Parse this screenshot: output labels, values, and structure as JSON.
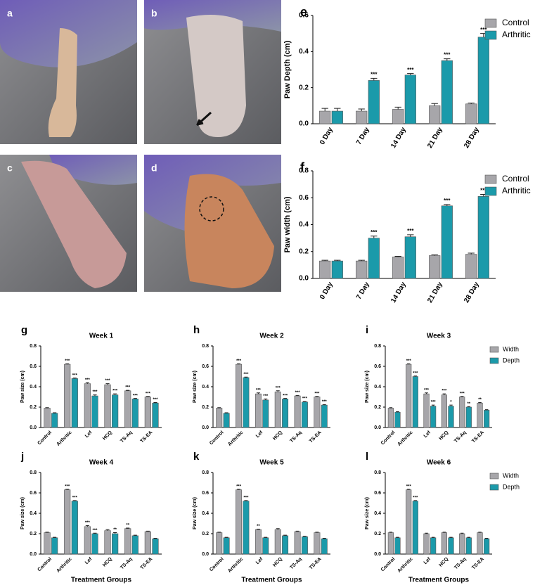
{
  "photos": [
    {
      "label": "a"
    },
    {
      "label": "b"
    },
    {
      "label": "c"
    },
    {
      "label": "d"
    }
  ],
  "chart_data": [
    {
      "type": "bar",
      "label": "e",
      "ylabel": "Paw Depth (cm)",
      "legend": true,
      "categories": [
        "0 Day",
        "7 Day",
        "14 Day",
        "21 Day",
        "28 Day"
      ],
      "ylim": [
        0,
        0.6
      ],
      "yticks": [
        {
          "value": 0,
          "label": "0.0"
        },
        0.2,
        0.4,
        0.6
      ],
      "series": [
        {
          "name": "Control",
          "color": "#a7a6aa",
          "values": [
            0.07,
            0.07,
            0.08,
            0.1,
            0.11
          ],
          "errors": [
            0.015,
            0.012,
            0.012,
            0.012,
            0.005
          ],
          "annotations": [
            null,
            null,
            null,
            null,
            null
          ]
        },
        {
          "name": "Arthritic",
          "color": "#1b9aaa",
          "values": [
            0.07,
            0.24,
            0.27,
            0.35,
            0.48
          ],
          "errors": [
            0.015,
            0.012,
            0.008,
            0.01,
            0.02
          ],
          "annotations": [
            null,
            "***",
            "***",
            "***",
            "***"
          ]
        }
      ]
    },
    {
      "type": "bar",
      "label": "f",
      "ylabel": "Paw width (cm)",
      "legend": true,
      "categories": [
        "0 Day",
        "7 Day",
        "14 Day",
        "21 Day",
        "28 Day"
      ],
      "ylim": [
        0,
        0.8
      ],
      "yticks": [
        {
          "value": 0,
          "label": "0.0"
        },
        0.2,
        0.4,
        0.6,
        0.8
      ],
      "series": [
        {
          "name": "Control",
          "color": "#a7a6aa",
          "values": [
            0.13,
            0.13,
            0.16,
            0.17,
            0.18
          ],
          "errors": [
            0.005,
            0.005,
            0.005,
            0.005,
            0.008
          ],
          "annotations": [
            null,
            null,
            null,
            null,
            null
          ]
        },
        {
          "name": "Arthritic",
          "color": "#1b9aaa",
          "values": [
            0.13,
            0.3,
            0.31,
            0.54,
            0.61
          ],
          "errors": [
            0.005,
            0.015,
            0.015,
            0.01,
            0.015
          ],
          "annotations": [
            null,
            "***",
            "***",
            "***",
            "***"
          ]
        }
      ]
    },
    {
      "type": "bar",
      "label": "g",
      "title": "Week 1",
      "ylabel": "Paw size (cm)",
      "legend": false,
      "categories": [
        "Control",
        "Arthritic",
        "Lef",
        "HCQ",
        "TS-Aq",
        "TS-EA"
      ],
      "ylim": [
        0,
        0.8
      ],
      "yticks": [
        {
          "value": 0,
          "label": "0.0"
        },
        0.2,
        0.4,
        0.6,
        0.8
      ],
      "series": [
        {
          "color": "#a7a6aa",
          "values": [
            0.19,
            0.62,
            0.43,
            0.42,
            0.36,
            0.3
          ],
          "errors": [
            0.005,
            0.005,
            0.01,
            0.01,
            0.005,
            0.005
          ],
          "annotations": [
            null,
            "***",
            "***",
            "***",
            "***",
            "***"
          ]
        },
        {
          "color": "#1b9aaa",
          "values": [
            0.14,
            0.48,
            0.31,
            0.32,
            0.28,
            0.24
          ],
          "errors": [
            0.005,
            0.005,
            0.01,
            0.01,
            0.005,
            0.005
          ],
          "annotations": [
            null,
            "***",
            "***",
            "***",
            "***",
            "***"
          ]
        }
      ]
    },
    {
      "type": "bar",
      "label": "h",
      "title": "Week 2",
      "ylabel": "Paw size (cm)",
      "legend": false,
      "categories": [
        "Control",
        "Arthritic",
        "Lef",
        "HCQ",
        "TS-Aq",
        "TS-EA"
      ],
      "ylim": [
        0,
        0.8
      ],
      "yticks": [
        {
          "value": 0,
          "label": "0.0"
        },
        0.2,
        0.4,
        0.6,
        0.8
      ],
      "series": [
        {
          "color": "#a7a6aa",
          "values": [
            0.19,
            0.62,
            0.33,
            0.35,
            0.31,
            0.3
          ],
          "errors": [
            0.005,
            0.005,
            0.01,
            0.01,
            0.005,
            0.005
          ],
          "annotations": [
            null,
            "***",
            "***",
            "***",
            "***",
            "***"
          ]
        },
        {
          "color": "#1b9aaa",
          "values": [
            0.14,
            0.49,
            0.27,
            0.28,
            0.25,
            0.22
          ],
          "errors": [
            0.005,
            0.005,
            0.01,
            0.005,
            0.005,
            0.005
          ],
          "annotations": [
            null,
            "***",
            "***",
            "***",
            "***",
            "***"
          ]
        }
      ]
    },
    {
      "type": "bar",
      "label": "i",
      "title": "Week 3",
      "ylabel": "Paw size (cm)",
      "legend": true,
      "categories": [
        "Control",
        "Arthritic",
        "Lef",
        "HCQ",
        "TS-Aq",
        "TS-EA"
      ],
      "ylim": [
        0,
        0.8
      ],
      "yticks": [
        {
          "value": 0,
          "label": "0.0"
        },
        0.2,
        0.4,
        0.6,
        0.8
      ],
      "series": [
        {
          "name": "Width",
          "color": "#a7a6aa",
          "values": [
            0.19,
            0.62,
            0.33,
            0.32,
            0.3,
            0.24
          ],
          "errors": [
            0.005,
            0.005,
            0.01,
            0.01,
            0.005,
            0.005
          ],
          "annotations": [
            null,
            "***",
            "***",
            "***",
            "***",
            "**"
          ]
        },
        {
          "name": "Depth",
          "color": "#1b9aaa",
          "values": [
            0.15,
            0.5,
            0.21,
            0.21,
            0.2,
            0.17
          ],
          "errors": [
            0.005,
            0.005,
            0.01,
            0.01,
            0.005,
            0.005
          ],
          "annotations": [
            null,
            "***",
            "***",
            "*",
            "**",
            null
          ]
        }
      ]
    },
    {
      "type": "bar",
      "label": "j",
      "title": "Week 4",
      "ylabel": "Paw size (cm)",
      "xlabel": "Treatment Groups",
      "legend": false,
      "categories": [
        "Control",
        "Arthritic",
        "Lef",
        "HCQ",
        "TS-Aq",
        "TS-EA"
      ],
      "ylim": [
        0,
        0.8
      ],
      "yticks": [
        {
          "value": 0,
          "label": "0.0"
        },
        0.2,
        0.4,
        0.6,
        0.8
      ],
      "series": [
        {
          "color": "#a7a6aa",
          "values": [
            0.21,
            0.63,
            0.27,
            0.23,
            0.25,
            0.22
          ],
          "errors": [
            0.005,
            0.005,
            0.01,
            0.01,
            0.005,
            0.005
          ],
          "annotations": [
            null,
            "***",
            "***",
            null,
            "**",
            null
          ]
        },
        {
          "color": "#1b9aaa",
          "values": [
            0.16,
            0.52,
            0.2,
            0.2,
            0.18,
            0.15
          ],
          "errors": [
            0.005,
            0.005,
            0.005,
            0.01,
            0.005,
            0.005
          ],
          "annotations": [
            null,
            "***",
            "***",
            "**",
            null,
            null
          ]
        }
      ]
    },
    {
      "type": "bar",
      "label": "k",
      "title": "Week 5",
      "ylabel": "Paw size (cm)",
      "xlabel": "Treatment Groups",
      "legend": false,
      "categories": [
        "Control",
        "Arthritic",
        "Lef",
        "HCQ",
        "TS-Aq",
        "TS-EA"
      ],
      "ylim": [
        0,
        0.8
      ],
      "yticks": [
        {
          "value": 0,
          "label": "0.0"
        },
        0.2,
        0.4,
        0.6,
        0.8
      ],
      "series": [
        {
          "color": "#a7a6aa",
          "values": [
            0.21,
            0.63,
            0.24,
            0.24,
            0.22,
            0.21
          ],
          "errors": [
            0.005,
            0.005,
            0.005,
            0.01,
            0.005,
            0.005
          ],
          "annotations": [
            null,
            "***",
            "**",
            null,
            null,
            null
          ]
        },
        {
          "color": "#1b9aaa",
          "values": [
            0.16,
            0.52,
            0.16,
            0.18,
            0.17,
            0.15
          ],
          "errors": [
            0.005,
            0.005,
            0.005,
            0.005,
            0.005,
            0.005
          ],
          "annotations": [
            null,
            "***",
            null,
            null,
            null,
            null
          ]
        }
      ]
    },
    {
      "type": "bar",
      "label": "l",
      "title": "Week 6",
      "ylabel": "Paw size (cm)",
      "xlabel": "Treatment Groups",
      "legend": true,
      "categories": [
        "Control",
        "Arthritic",
        "Lef",
        "HCQ",
        "TS-Aq",
        "TS-EA"
      ],
      "ylim": [
        0,
        0.8
      ],
      "yticks": [
        {
          "value": 0,
          "label": "0.0"
        },
        0.2,
        0.4,
        0.6,
        0.8
      ],
      "series": [
        {
          "name": "Width",
          "color": "#a7a6aa",
          "values": [
            0.21,
            0.63,
            0.2,
            0.21,
            0.2,
            0.21
          ],
          "errors": [
            0.005,
            0.005,
            0.005,
            0.005,
            0.005,
            0.005
          ],
          "annotations": [
            null,
            "***",
            null,
            null,
            null,
            null
          ]
        },
        {
          "name": "Depth",
          "color": "#1b9aaa",
          "values": [
            0.16,
            0.52,
            0.16,
            0.16,
            0.16,
            0.15
          ],
          "errors": [
            0.005,
            0.005,
            0.005,
            0.005,
            0.005,
            0.005
          ],
          "annotations": [
            null,
            "***",
            null,
            null,
            null,
            null
          ]
        }
      ]
    }
  ]
}
